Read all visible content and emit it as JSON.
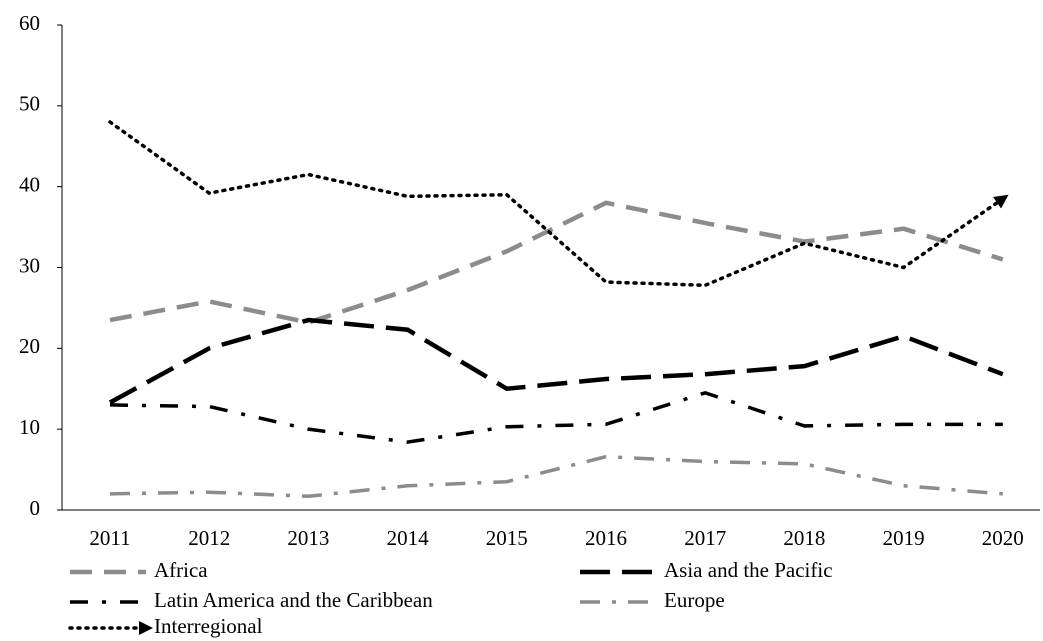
{
  "chart_data": {
    "type": "line",
    "categories": [
      "2011",
      "2012",
      "2013",
      "2014",
      "2015",
      "2016",
      "2017",
      "2018",
      "2019",
      "2020"
    ],
    "series": [
      {
        "name": "Africa",
        "color": "#8c8c8c",
        "values": [
          23.5,
          25.8,
          23.2,
          27.2,
          32,
          38,
          35.5,
          33.2,
          34.8,
          31
        ]
      },
      {
        "name": "Asia and the Pacific",
        "color": "#000000",
        "values": [
          13.3,
          20,
          23.5,
          22.3,
          15,
          16.2,
          16.8,
          17.8,
          21.5,
          16.8
        ]
      },
      {
        "name": "Latin America and the Caribbean",
        "color": "#000000",
        "values": [
          13,
          12.8,
          10,
          8.4,
          10.3,
          10.6,
          14.5,
          10.4,
          10.6,
          10.6
        ]
      },
      {
        "name": "Europe",
        "color": "#8c8c8c",
        "values": [
          2,
          2.2,
          1.7,
          3,
          3.5,
          6.6,
          6,
          5.7,
          3,
          2
        ]
      },
      {
        "name": "Interregional",
        "color": "#000000",
        "values": [
          48,
          39.2,
          41.5,
          38.8,
          39,
          28.2,
          27.8,
          33,
          30,
          38.5
        ]
      }
    ],
    "ylim": [
      0,
      60
    ],
    "yticks": [
      0,
      10,
      20,
      30,
      40,
      50,
      60
    ],
    "grid": false
  }
}
